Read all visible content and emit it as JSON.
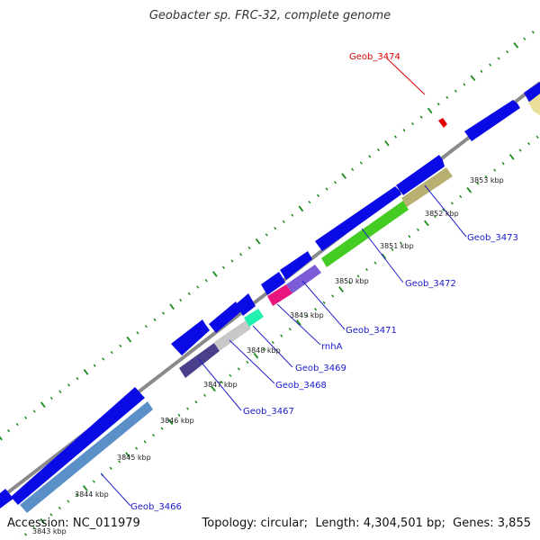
{
  "title": "Geobacter sp. FRC-32, complete genome",
  "footer": {
    "accession_label": "Accession:",
    "accession": "NC_011979",
    "topology_label": "Topology:",
    "topology": "circular",
    "length_label": "Length:",
    "length": "4,304,501 bp",
    "genes_label": "Genes:",
    "genes": "3,855"
  },
  "kbp_labels": [
    "3843 kbp",
    "3844 kbp",
    "3845 kbp",
    "3846 kbp",
    "3847 kbp",
    "3848 kbp",
    "3849 kbp",
    "3850 kbp",
    "3851 kbp",
    "3852 kbp",
    "3853 kbp"
  ],
  "genes": [
    {
      "name": "Geob_3466",
      "color": "#0000ee"
    },
    {
      "name": "Geob_3467",
      "color": "#0000ee"
    },
    {
      "name": "Geob_3468",
      "color": "#0000ee"
    },
    {
      "name": "Geob_3469",
      "color": "#0000ee"
    },
    {
      "name": "rnhA",
      "color": "#0000ee"
    },
    {
      "name": "Geob_3471",
      "color": "#0000ee"
    },
    {
      "name": "Geob_3472",
      "color": "#0000ee"
    },
    {
      "name": "Geob_3473",
      "color": "#0000ee"
    },
    {
      "name": "Geob_3474",
      "color": "#dd0000"
    }
  ],
  "colors": {
    "backbone": "#8a8a8a",
    "forward_gene": "#0a0ae6",
    "tick": "#1a8a1a",
    "kbp_text": "#222222"
  }
}
